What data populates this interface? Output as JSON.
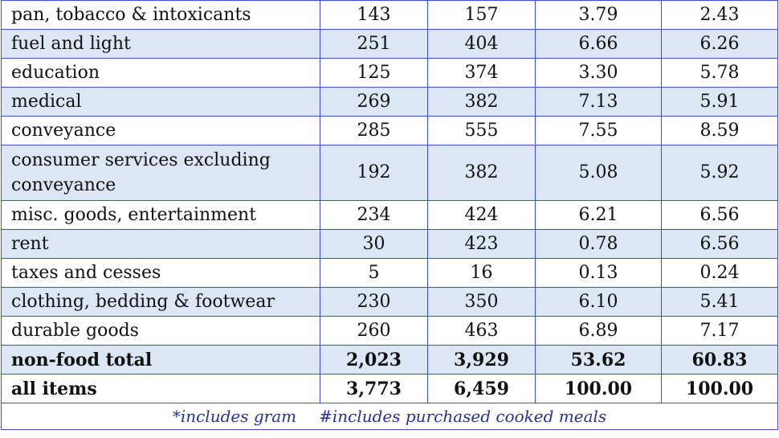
{
  "table": {
    "rows": [
      {
        "label": "pan, tobacco & intoxicants",
        "v1": "143",
        "v2": "157",
        "v3": "3.79",
        "v4": "2.43",
        "bold": false
      },
      {
        "label": "fuel and light",
        "v1": "251",
        "v2": "404",
        "v3": "6.66",
        "v4": "6.26",
        "bold": false
      },
      {
        "label": "education",
        "v1": "125",
        "v2": "374",
        "v3": "3.30",
        "v4": "5.78",
        "bold": false
      },
      {
        "label": "medical",
        "v1": "269",
        "v2": "382",
        "v3": "7.13",
        "v4": "5.91",
        "bold": false
      },
      {
        "label": "conveyance",
        "v1": "285",
        "v2": "555",
        "v3": "7.55",
        "v4": "8.59",
        "bold": false
      },
      {
        "label": "consumer services excluding conveyance",
        "v1": "192",
        "v2": "382",
        "v3": "5.08",
        "v4": "5.92",
        "bold": false
      },
      {
        "label": "misc. goods, entertainment",
        "v1": "234",
        "v2": "424",
        "v3": "6.21",
        "v4": "6.56",
        "bold": false
      },
      {
        "label": "rent",
        "v1": "30",
        "v2": "423",
        "v3": "0.78",
        "v4": "6.56",
        "bold": false
      },
      {
        "label": "taxes and cesses",
        "v1": "5",
        "v2": "16",
        "v3": "0.13",
        "v4": "0.24",
        "bold": false
      },
      {
        "label": "clothing, bedding & footwear",
        "v1": "230",
        "v2": "350",
        "v3": "6.10",
        "v4": "5.41",
        "bold": false
      },
      {
        "label": "durable goods",
        "v1": "260",
        "v2": "463",
        "v3": "6.89",
        "v4": "7.17",
        "bold": false
      },
      {
        "label": "non-food total",
        "v1": "2,023",
        "v2": "3,929",
        "v3": "53.62",
        "v4": "60.83",
        "bold": true
      },
      {
        "label": "all items",
        "v1": "3,773",
        "v2": "6,459",
        "v3": "100.00",
        "v4": "100.00",
        "bold": true
      }
    ],
    "footnote_1": "*includes gram",
    "footnote_2": "#includes purchased cooked meals"
  },
  "colors": {
    "border": "#3d4fd4",
    "band": "#dde6f4",
    "footnote_text": "#26338f"
  }
}
